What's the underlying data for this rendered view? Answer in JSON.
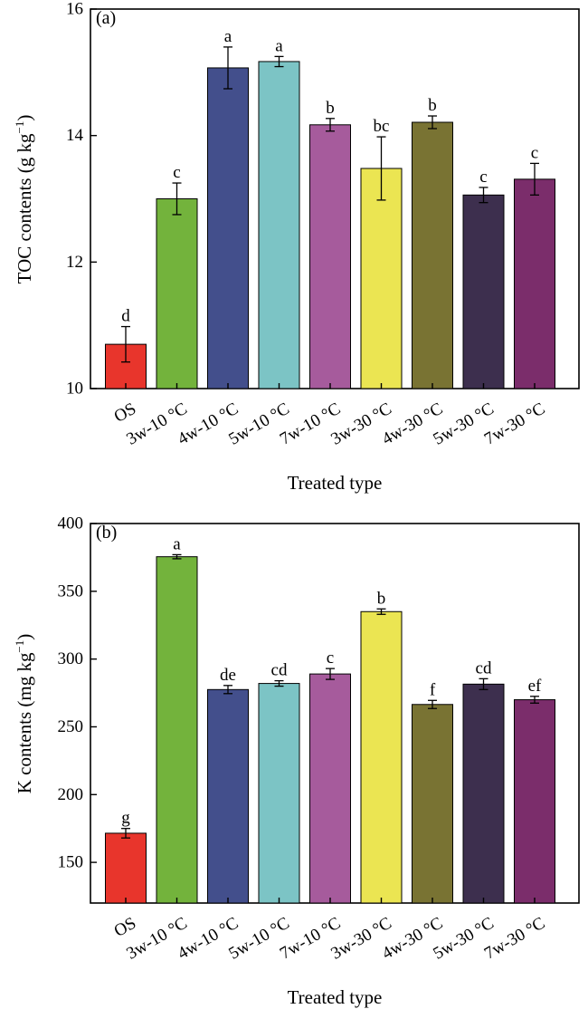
{
  "chart_data": [
    {
      "type": "bar",
      "panel_label": "(a)",
      "categories": [
        "OS",
        "3w-10 °C",
        "4w-10 °C",
        "5w-10 °C",
        "7w-10 °C",
        "3w-30 °C",
        "4w-30 °C",
        "5w-30 °C",
        "7w-30 °C"
      ],
      "values": [
        10.7,
        13.0,
        15.07,
        15.17,
        14.17,
        13.48,
        14.21,
        13.06,
        13.31
      ],
      "errors": [
        0.28,
        0.25,
        0.33,
        0.08,
        0.1,
        0.5,
        0.1,
        0.12,
        0.25
      ],
      "significance": [
        "d",
        "c",
        "a",
        "a",
        "b",
        "bc",
        "b",
        "c",
        "c"
      ],
      "colors": [
        "#e8352c",
        "#73b33c",
        "#434f8c",
        "#7cc4c5",
        "#a65b9c",
        "#ebe552",
        "#797333",
        "#3d2f4e",
        "#7b2d6b"
      ],
      "xlabel": "Treated type",
      "ylabel_main": "TOC contents (g kg",
      "ylabel_sup": "−1",
      "ylabel_end": ")",
      "ylim": [
        10,
        16
      ],
      "yticks": [
        10,
        12,
        14,
        16
      ],
      "grid": false
    },
    {
      "type": "bar",
      "panel_label": "(b)",
      "categories": [
        "OS",
        "3w-10 °C",
        "4w-10 °C",
        "5w-10 °C",
        "7w-10 °C",
        "3w-30 °C",
        "4w-30 °C",
        "5w-30 °C",
        "7w-30 °C"
      ],
      "values": [
        171.5,
        375.5,
        277.5,
        282.0,
        289.0,
        335.0,
        266.5,
        281.5,
        270.0
      ],
      "errors": [
        3.5,
        1.5,
        3.0,
        2.0,
        4.0,
        2.0,
        3.0,
        4.0,
        2.5
      ],
      "significance": [
        "g",
        "a",
        "de",
        "cd",
        "c",
        "b",
        "f",
        "cd",
        "ef"
      ],
      "colors": [
        "#e8352c",
        "#73b33c",
        "#434f8c",
        "#7cc4c5",
        "#a65b9c",
        "#ebe552",
        "#797333",
        "#3d2f4e",
        "#7b2d6b"
      ],
      "xlabel": "Treated type",
      "ylabel_main": "K contents (mg kg",
      "ylabel_sup": "−1",
      "ylabel_end": ")",
      "ylim": [
        120,
        400
      ],
      "yticks": [
        150,
        200,
        250,
        300,
        350,
        400
      ],
      "grid": false
    }
  ]
}
